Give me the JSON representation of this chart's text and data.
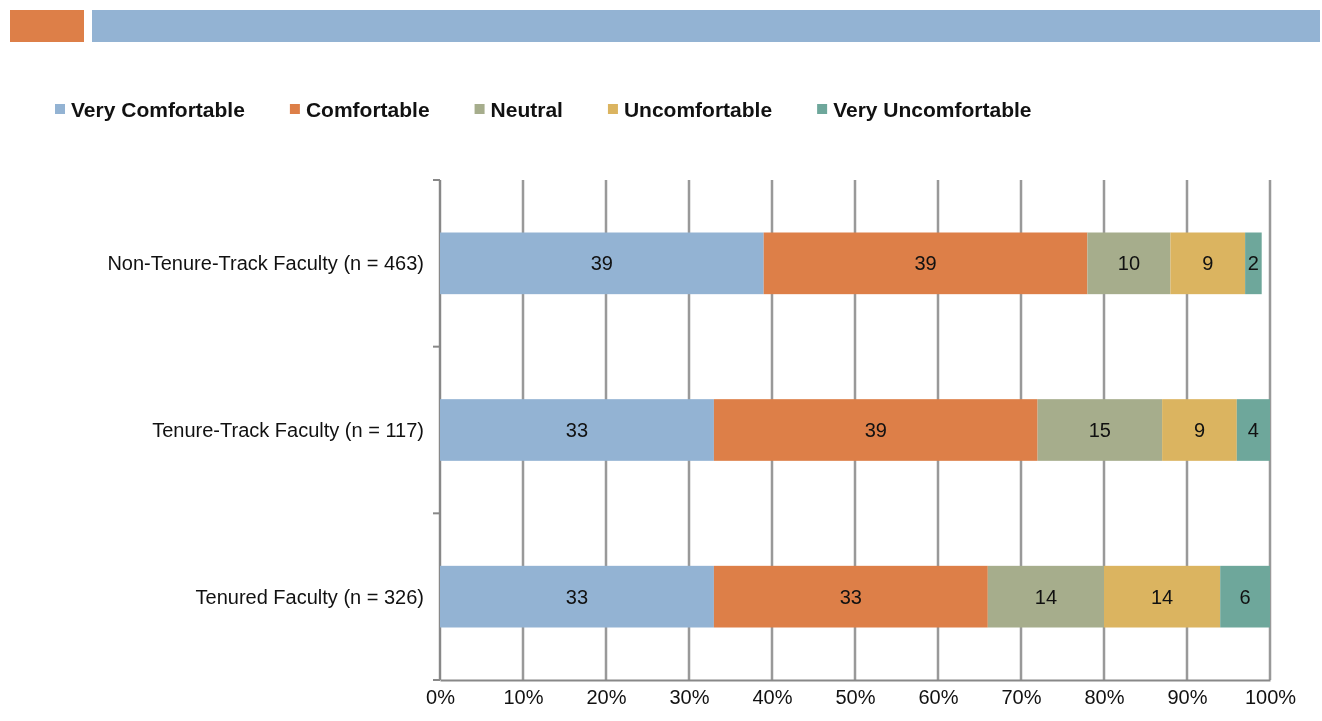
{
  "chart_data": {
    "type": "bar",
    "orientation": "horizontal",
    "stacked": true,
    "categories": [
      "Non-Tenure-Track Faculty (n = 463)",
      "Tenure-Track Faculty (n = 117)",
      "Tenured Faculty (n = 326)"
    ],
    "series": [
      {
        "name": "Very Comfortable",
        "color": "#93b3d3",
        "values": [
          39,
          33,
          33
        ]
      },
      {
        "name": "Comfortable",
        "color": "#dd7f48",
        "values": [
          39,
          39,
          33
        ]
      },
      {
        "name": "Neutral",
        "color": "#a6ad8c",
        "values": [
          10,
          15,
          14
        ]
      },
      {
        "name": "Uncomfortable",
        "color": "#dbb460",
        "values": [
          9,
          9,
          14
        ]
      },
      {
        "name": "Very Uncomfortable",
        "color": "#6ea79b",
        "values": [
          2,
          4,
          6
        ]
      }
    ],
    "xlim": [
      0,
      100
    ],
    "xticks": [
      {
        "value": 0,
        "label": "0%"
      },
      {
        "value": 10,
        "label": "10%"
      },
      {
        "value": 20,
        "label": "20%"
      },
      {
        "value": 30,
        "label": "30%"
      },
      {
        "value": 40,
        "label": "40%"
      },
      {
        "value": 50,
        "label": "50%"
      },
      {
        "value": 60,
        "label": "60%"
      },
      {
        "value": 70,
        "label": "70%"
      },
      {
        "value": 80,
        "label": "80%"
      },
      {
        "value": 90,
        "label": "90%"
      },
      {
        "value": 100,
        "label": "100%"
      }
    ],
    "grid": "x",
    "legend": "top",
    "data_labels": true
  }
}
